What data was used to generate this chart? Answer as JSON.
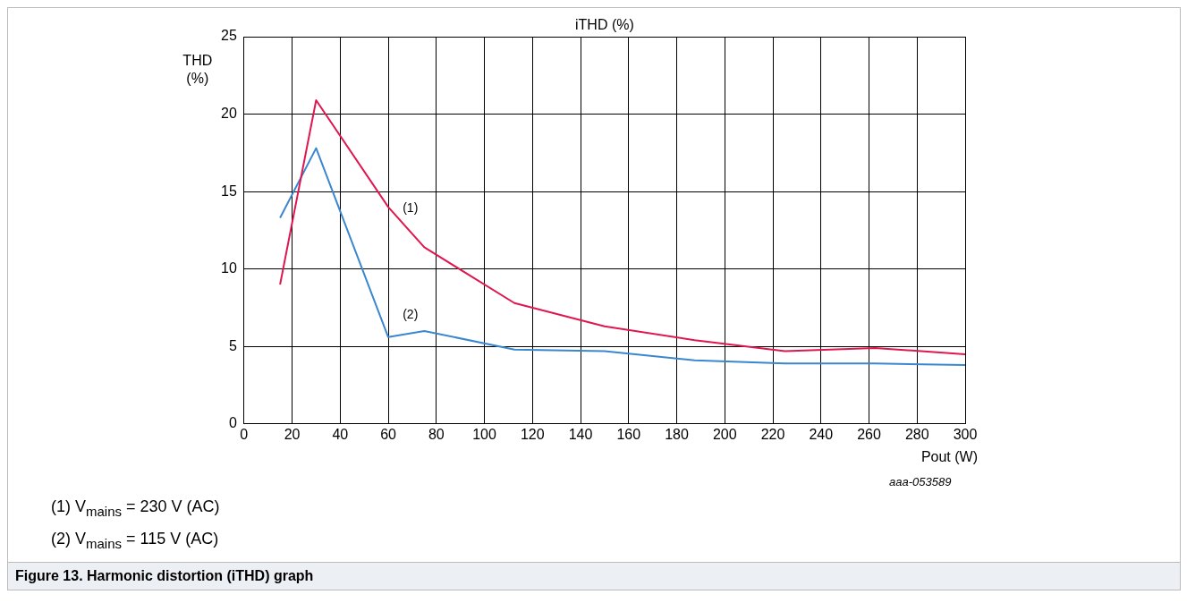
{
  "chart_data": {
    "type": "line",
    "title": "iTHD (%)",
    "ylabel": "THD (%)",
    "xlabel": "Pout (W)",
    "x": [
      15,
      30,
      60,
      75,
      112.5,
      150,
      187.5,
      225,
      262.5,
      300
    ],
    "series": [
      {
        "name": "(1)",
        "color": "#e0174f",
        "values": [
          9.0,
          20.9,
          14.0,
          11.4,
          7.8,
          6.3,
          5.4,
          4.7,
          4.9,
          4.5
        ]
      },
      {
        "name": "(2)",
        "color": "#3a87d0",
        "values": [
          13.3,
          17.8,
          5.6,
          6.0,
          4.8,
          4.7,
          4.1,
          3.9,
          3.9,
          3.8
        ]
      }
    ],
    "xlim": [
      0,
      300
    ],
    "xticks": [
      0,
      20,
      40,
      60,
      80,
      100,
      120,
      140,
      160,
      180,
      200,
      220,
      240,
      260,
      280,
      300
    ],
    "ylim": [
      0,
      25
    ],
    "yticks": [
      0,
      5,
      10,
      15,
      20,
      25
    ],
    "grid": true,
    "legend": false,
    "marker": "none",
    "line_style": "solid",
    "annotations": [
      "aaa-053589",
      "(1) V$_{mains}$ = 230 V (AC)",
      "(2) V$_{mains}$ = 115 V (AC)",
      "Figure 13.  Harmonic distortion (iTHD) graph"
    ]
  }
}
